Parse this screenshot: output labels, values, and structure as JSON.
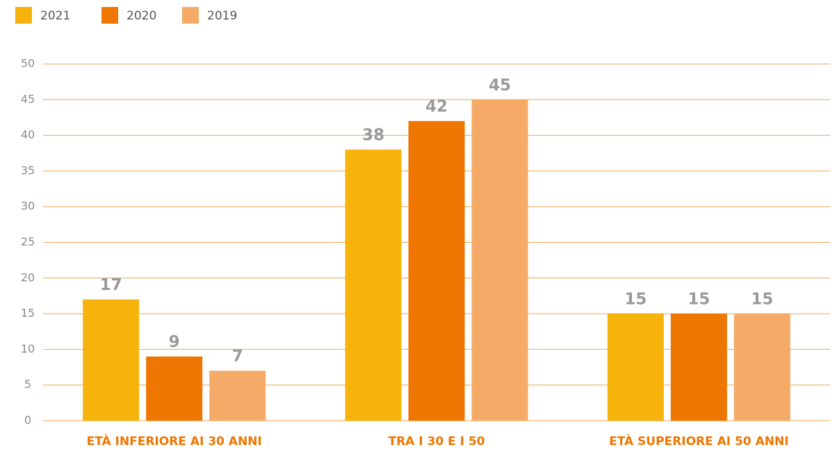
{
  "chart_data": {
    "type": "bar",
    "categories": [
      "ETÀ INFERIORE AI 30 ANNI",
      "TRA I 30 E I 50",
      "ETÀ SUPERIORE AI 50 ANNI"
    ],
    "series": [
      {
        "name": "2021",
        "color": "#f5b30b",
        "values": [
          17,
          38,
          15
        ]
      },
      {
        "name": "2020",
        "color": "#ee7601",
        "values": [
          9,
          42,
          15
        ]
      },
      {
        "name": "2019",
        "color": "#f5ab67",
        "values": [
          7,
          45,
          15
        ]
      }
    ],
    "ylim": [
      0,
      50
    ],
    "yticks": [
      0,
      5,
      10,
      15,
      20,
      25,
      30,
      35,
      40,
      45,
      50
    ],
    "grid": true,
    "legend": "top-left"
  }
}
